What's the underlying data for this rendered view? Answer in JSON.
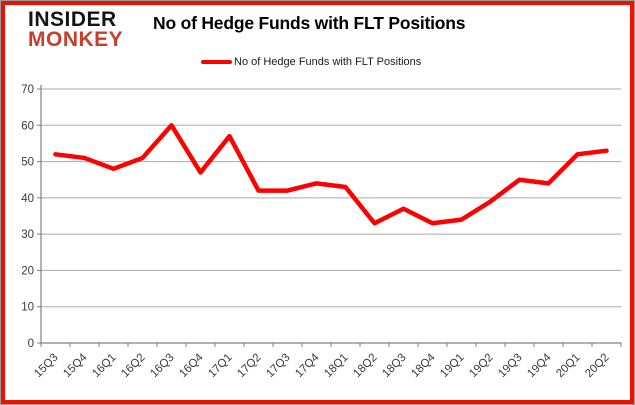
{
  "logo": {
    "line1": "INSIDER",
    "line2": "MONKEY",
    "line1_color": "#151515",
    "line2_color": "#c4402c"
  },
  "header": {
    "title": "No of Hedge Funds with FLT Positions"
  },
  "legend": {
    "label": "No of Hedge Funds with FLT Positions",
    "swatch_color": "#ff0000"
  },
  "chart_data": {
    "type": "line",
    "title": "No of Hedge Funds with FLT Positions",
    "series_name": "No of Hedge Funds with FLT Positions",
    "categories": [
      "15Q3",
      "15Q4",
      "16Q1",
      "16Q2",
      "16Q3",
      "16Q4",
      "17Q1",
      "17Q2",
      "17Q3",
      "17Q4",
      "18Q1",
      "18Q2",
      "18Q3",
      "18Q4",
      "19Q1",
      "19Q2",
      "19Q3",
      "19Q4",
      "20Q1",
      "20Q2"
    ],
    "values": [
      52,
      51,
      48,
      51,
      60,
      47,
      57,
      42,
      42,
      44,
      43,
      33,
      37,
      33,
      34,
      39,
      45,
      44,
      52,
      53
    ],
    "xlabel": "",
    "ylabel": "",
    "ylim": [
      0,
      70
    ],
    "ytick_interval": 10,
    "grid": true,
    "legend_position": "top-center",
    "line_color": "#ff0000",
    "axis_color": "#808080",
    "gridline_color": "#a8a8a8",
    "tick_label_color": "#3a3a3a"
  }
}
